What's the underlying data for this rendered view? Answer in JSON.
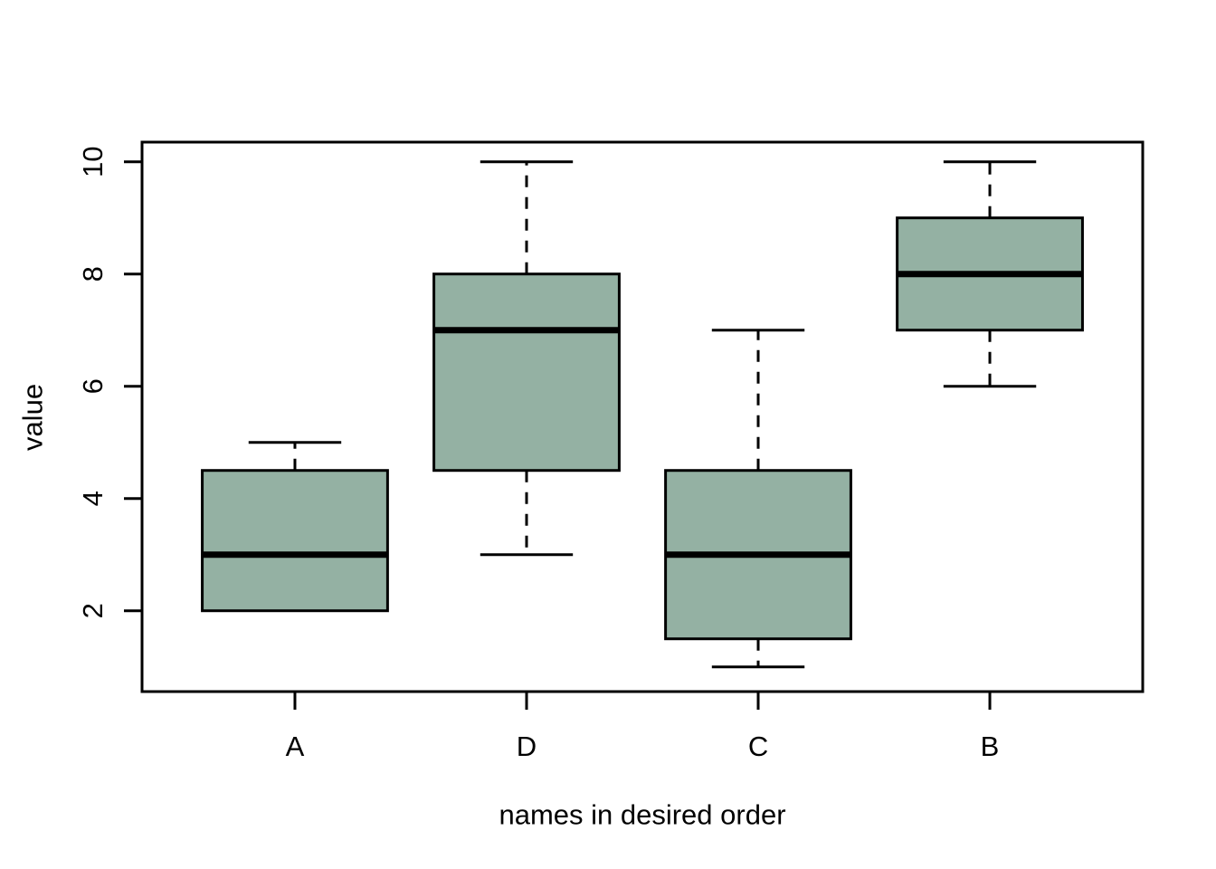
{
  "figure": {
    "background": "#ffffff"
  },
  "chart_data": {
    "type": "boxplot",
    "title": "",
    "xlabel": "names in desired order",
    "ylabel": "value",
    "categories": [
      "A",
      "D",
      "C",
      "B"
    ],
    "yticks": [
      2,
      4,
      6,
      8,
      10
    ],
    "ylim": [
      0.56,
      10.35
    ],
    "xlim": [
      0.34,
      4.66
    ],
    "grid": false,
    "legend": null,
    "colors": {
      "box_fill": "#94B1A3",
      "box_border": "#000000",
      "median": "#000000",
      "whisker": "#000000",
      "axis": "#000000"
    },
    "box_width_units": 0.8,
    "cap_width_units": 0.4,
    "series": [
      {
        "name": "A",
        "whisker_low": 2,
        "q1": 2,
        "median": 3,
        "q3": 4.5,
        "whisker_high": 5
      },
      {
        "name": "D",
        "whisker_low": 3,
        "q1": 4.5,
        "median": 7,
        "q3": 8,
        "whisker_high": 10
      },
      {
        "name": "C",
        "whisker_low": 1,
        "q1": 1.5,
        "median": 3,
        "q3": 4.5,
        "whisker_high": 7
      },
      {
        "name": "B",
        "whisker_low": 6,
        "q1": 7,
        "median": 8,
        "q3": 9,
        "whisker_high": 10
      }
    ]
  }
}
